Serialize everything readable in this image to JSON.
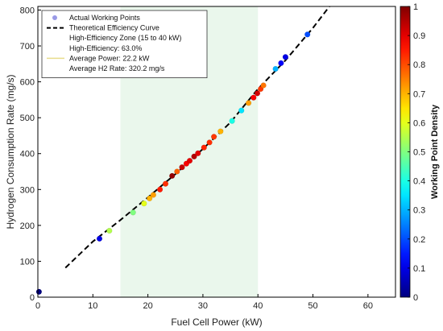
{
  "chart_data": {
    "type": "scatter",
    "xlabel": "Fuel Cell Power (kW)",
    "ylabel": "Hydrogen Consumption Rate (mg/s)",
    "xlim": [
      0,
      65
    ],
    "ylim": [
      0,
      810
    ],
    "x_ticks": [
      0,
      10,
      20,
      30,
      40,
      50,
      60
    ],
    "y_ticks": [
      0,
      100,
      200,
      300,
      400,
      500,
      600,
      700,
      800
    ],
    "grid": false,
    "legend_position": "top-left",
    "colorbar": {
      "label": "Working Point Density",
      "range": [
        0,
        1
      ],
      "ticks": [
        0,
        0.1,
        0.2,
        0.3,
        0.4,
        0.5,
        0.6,
        0.7,
        0.8,
        0.9,
        1
      ],
      "colormap": "jet"
    },
    "high_efficiency_zone": {
      "x_range": [
        15,
        40
      ],
      "color": "#eaf7ec"
    },
    "legend": [
      {
        "label": "Actual Working Points",
        "marker": "dot",
        "color": "#9a9ae6"
      },
      {
        "label": "Theoretical Efficiency Curve",
        "marker": "dashed-line",
        "color": "#000000"
      },
      {
        "label": "High-Efficiency Zone (15 to 40 kW)",
        "marker": "none"
      },
      {
        "label": "High-Efficiency: 63.0%",
        "marker": "none"
      },
      {
        "label": "Average Power: 22.2 kW",
        "marker": "line",
        "color": "#e8dc8c"
      },
      {
        "label": "Average H2 Rate: 320.2 mg/s",
        "marker": "none"
      }
    ],
    "theoretical_curve": {
      "x": [
        5,
        10,
        15,
        20,
        25,
        30,
        35,
        40,
        45,
        50,
        53
      ],
      "y": [
        82,
        155,
        215,
        278,
        343,
        413,
        487,
        580,
        660,
        750,
        810
      ]
    },
    "points": [
      {
        "x": 0.2,
        "y": 15,
        "density": 0.0
      },
      {
        "x": 11.2,
        "y": 163,
        "density": 0.1
      },
      {
        "x": 13.0,
        "y": 185,
        "density": 0.55
      },
      {
        "x": 17.3,
        "y": 236,
        "density": 0.5
      },
      {
        "x": 19.3,
        "y": 261,
        "density": 0.6
      },
      {
        "x": 20.3,
        "y": 275,
        "density": 0.7
      },
      {
        "x": 21.0,
        "y": 285,
        "density": 0.72
      },
      {
        "x": 22.2,
        "y": 300,
        "density": 0.85
      },
      {
        "x": 23.2,
        "y": 316,
        "density": 0.83
      },
      {
        "x": 24.4,
        "y": 338,
        "density": 0.98
      },
      {
        "x": 25.3,
        "y": 350,
        "density": 0.78
      },
      {
        "x": 26.2,
        "y": 362,
        "density": 0.93
      },
      {
        "x": 27.0,
        "y": 372,
        "density": 0.88
      },
      {
        "x": 27.6,
        "y": 380,
        "density": 0.9
      },
      {
        "x": 28.4,
        "y": 392,
        "density": 0.95
      },
      {
        "x": 29.1,
        "y": 401,
        "density": 0.9
      },
      {
        "x": 30.2,
        "y": 417,
        "density": 0.84
      },
      {
        "x": 31.2,
        "y": 431,
        "density": 0.83
      },
      {
        "x": 32.0,
        "y": 447,
        "density": 0.82
      },
      {
        "x": 33.2,
        "y": 462,
        "density": 0.7
      },
      {
        "x": 35.3,
        "y": 491,
        "density": 0.4
      },
      {
        "x": 37.0,
        "y": 520,
        "density": 0.35
      },
      {
        "x": 38.3,
        "y": 541,
        "density": 0.72
      },
      {
        "x": 39.2,
        "y": 556,
        "density": 0.88
      },
      {
        "x": 39.9,
        "y": 568,
        "density": 0.92
      },
      {
        "x": 40.5,
        "y": 580,
        "density": 0.82
      },
      {
        "x": 41.0,
        "y": 590,
        "density": 0.76
      },
      {
        "x": 43.2,
        "y": 636,
        "density": 0.3
      },
      {
        "x": 44.2,
        "y": 652,
        "density": 0.12
      },
      {
        "x": 45.0,
        "y": 669,
        "density": 0.1
      },
      {
        "x": 49.0,
        "y": 732,
        "density": 0.2
      }
    ]
  }
}
